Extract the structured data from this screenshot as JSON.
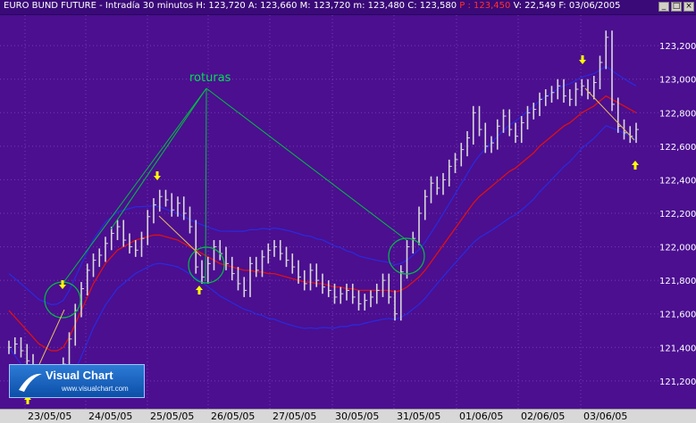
{
  "window": {
    "title": "EURO BUND FUTURE - Intradía 30 minutos",
    "stats": [
      {
        "label": "H:",
        "value": "123,720"
      },
      {
        "label": "A:",
        "value": "123,660"
      },
      {
        "label": "M:",
        "value": "123,720"
      },
      {
        "label": "m:",
        "value": "123,480"
      },
      {
        "label": "C:",
        "value": "123,580"
      },
      {
        "label": "P :",
        "value": "123,450"
      },
      {
        "label": "V:",
        "value": "22,549"
      },
      {
        "label": "F:",
        "value": "03/06/2005"
      }
    ],
    "buttons": {
      "minimize": "_",
      "maximize": "□",
      "close": "×"
    }
  },
  "annotation": {
    "label": "roturas"
  },
  "logo": {
    "title": "Visual Chart",
    "url": "www.visualchart.com"
  },
  "colors": {
    "background": "#4b0f90",
    "grid": "#7a3ab0",
    "price": "#d8d8d8",
    "ma": "#e01010",
    "bands": "#2a2ae0",
    "lines": "#00c040",
    "trendline": "#e8c060",
    "arrows": "#ffff00"
  },
  "chart_data": {
    "type": "line",
    "yticks": [
      "123,200",
      "123,000",
      "122,800",
      "122,600",
      "122,400",
      "122,200",
      "122,000",
      "121,800",
      "121,600",
      "121,400",
      "121,200"
    ],
    "yticks_values": [
      123.2,
      123.0,
      122.8,
      122.6,
      122.4,
      122.2,
      122.0,
      121.8,
      121.6,
      121.4,
      121.2
    ],
    "ylim": [
      121.05,
      123.35
    ],
    "dates": [
      "23/05/05",
      "24/05/05",
      "25/05/05",
      "26/05/05",
      "27/05/05",
      "30/05/05",
      "31/05/05",
      "01/06/05",
      "02/06/05",
      "03/06/05"
    ],
    "price": [
      121.4,
      121.42,
      121.38,
      121.32,
      121.25,
      121.18,
      121.2,
      121.22,
      121.25,
      121.3,
      121.45,
      121.62,
      121.75,
      121.86,
      121.92,
      121.95,
      122.02,
      122.08,
      122.12,
      122.04,
      122.0,
      121.98,
      122.05,
      122.18,
      122.25,
      122.3,
      122.28,
      122.22,
      122.26,
      122.2,
      122.12,
      121.88,
      121.82,
      121.9,
      122.0,
      121.96,
      121.9,
      121.84,
      121.78,
      121.74,
      121.9,
      121.86,
      121.94,
      121.98,
      122.0,
      121.96,
      121.92,
      121.88,
      121.82,
      121.78,
      121.86,
      121.8,
      121.76,
      121.74,
      121.7,
      121.72,
      121.74,
      121.7,
      121.66,
      121.68,
      121.7,
      121.74,
      121.8,
      121.7,
      121.6,
      121.85,
      122.0,
      122.05,
      122.2,
      122.3,
      122.38,
      122.35,
      122.4,
      122.48,
      122.52,
      122.58,
      122.65,
      122.8,
      122.7,
      122.6,
      122.62,
      122.72,
      122.78,
      122.7,
      122.66,
      122.74,
      122.8,
      122.82,
      122.88,
      122.9,
      122.92,
      122.96,
      122.9,
      122.88,
      122.94,
      122.96,
      122.92,
      122.98,
      123.1,
      123.25,
      122.85,
      122.72,
      122.68,
      122.66,
      122.7
    ],
    "ma": [
      121.62,
      121.58,
      121.54,
      121.5,
      121.46,
      121.42,
      121.4,
      121.38,
      121.38,
      121.4,
      121.46,
      121.54,
      121.62,
      121.7,
      121.78,
      121.84,
      121.9,
      121.94,
      121.98,
      122.0,
      122.02,
      122.04,
      122.05,
      122.06,
      122.07,
      122.07,
      122.06,
      122.05,
      122.04,
      122.02,
      122.0,
      121.98,
      121.96,
      121.94,
      121.92,
      121.9,
      121.89,
      121.88,
      121.87,
      121.86,
      121.86,
      121.85,
      121.85,
      121.84,
      121.84,
      121.83,
      121.82,
      121.81,
      121.8,
      121.79,
      121.79,
      121.78,
      121.78,
      121.77,
      121.76,
      121.76,
      121.75,
      121.75,
      121.74,
      121.74,
      121.74,
      121.74,
      121.74,
      121.74,
      121.73,
      121.74,
      121.76,
      121.79,
      121.82,
      121.86,
      121.91,
      121.96,
      122.01,
      122.06,
      122.11,
      122.16,
      122.21,
      122.26,
      122.3,
      122.33,
      122.36,
      122.39,
      122.42,
      122.45,
      122.47,
      122.5,
      122.53,
      122.56,
      122.6,
      122.63,
      122.66,
      122.69,
      122.72,
      122.74,
      122.77,
      122.8,
      122.82,
      122.84,
      122.87,
      122.9,
      122.88,
      122.86,
      122.84,
      122.82,
      122.8
    ]
  },
  "date_labels": [
    "23/05/05",
    "24/05/05",
    "25/05/05",
    "26/05/05",
    "27/05/05",
    "30/05/05",
    "31/05/05",
    "01/06/05",
    "02/06/05",
    "03/06/05"
  ]
}
